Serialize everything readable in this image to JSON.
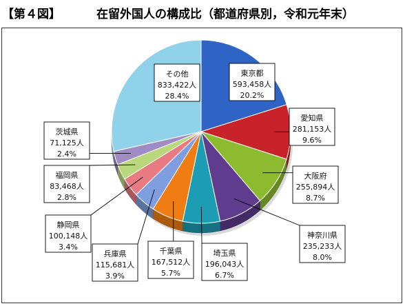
{
  "header": {
    "figure_label": "【第４図】",
    "title": "在留外国人の構成比（都道府県別，令和元年末）"
  },
  "chart_data": {
    "type": "pie",
    "slices": [
      {
        "name": "東京都",
        "count": "593,458人",
        "value": 20.2,
        "color": "#2f64c6"
      },
      {
        "name": "愛知県",
        "count": "281,153人",
        "value": 9.6,
        "color": "#c8232a"
      },
      {
        "name": "大阪府",
        "count": "255,894人",
        "value": 8.7,
        "color": "#8dbb2f"
      },
      {
        "name": "神奈川県",
        "count": "235,233人",
        "value": 8.0,
        "color": "#5f3c8e"
      },
      {
        "name": "埼玉県",
        "count": "196,043人",
        "value": 6.7,
        "color": "#1d9db3"
      },
      {
        "name": "千葉県",
        "count": "167,512人",
        "value": 5.7,
        "color": "#f07d13"
      },
      {
        "name": "兵庫県",
        "count": "115,681人",
        "value": 3.9,
        "color": "#7e9ee0"
      },
      {
        "name": "静岡県",
        "count": "100,148人",
        "value": 3.4,
        "color": "#e87a82"
      },
      {
        "name": "福岡県",
        "count": "83,468人",
        "value": 2.8,
        "color": "#b9d87b"
      },
      {
        "name": "茨城県",
        "count": "71,125人",
        "value": 2.4,
        "color": "#9f8cc4"
      },
      {
        "name": "その他",
        "count": "833,422人",
        "value": 28.4,
        "color": "#8fd2ea"
      }
    ],
    "value_suffix": "%"
  }
}
